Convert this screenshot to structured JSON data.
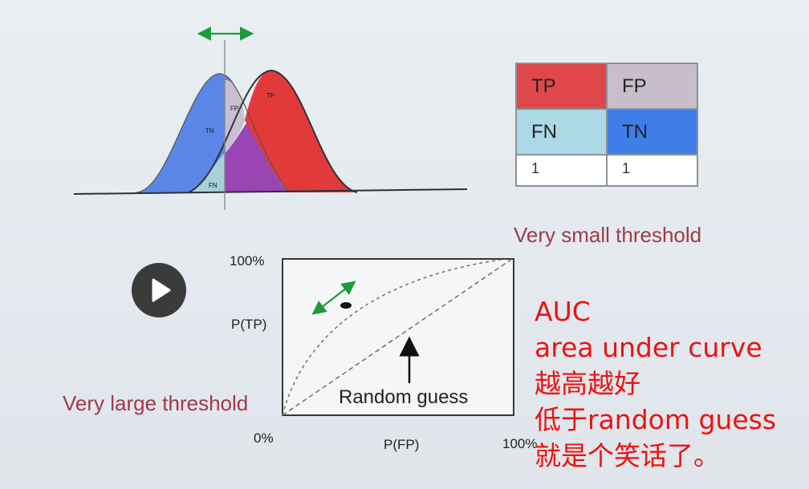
{
  "distribution": {
    "labels": {
      "tn": "TN",
      "fp": "FP",
      "tp": "TP",
      "fn": "FN"
    },
    "colors": {
      "negative": "#5a86e8",
      "positive": "#e23a3a",
      "overlap": "#9a45b4",
      "fp_region": "#c9bfd3",
      "fn_region": "#a8d0d8",
      "threshold_arrow": "#1e9a3c"
    }
  },
  "confusion_matrix": {
    "rows": [
      [
        {
          "text": "TP",
          "color": "#e0474a"
        },
        {
          "text": "FP",
          "color": "#c8bdca"
        }
      ],
      [
        {
          "text": "FN",
          "color": "#abd9e6"
        },
        {
          "text": "TN",
          "color": "#3f7de8"
        }
      ],
      [
        {
          "text": "1",
          "color": "#ffffff"
        },
        {
          "text": "1",
          "color": "#ffffff"
        }
      ]
    ]
  },
  "labels": {
    "small_threshold": "Very small threshold",
    "large_threshold": "Very large threshold"
  },
  "roc": {
    "y_top": "100%",
    "y_label": "P(TP)",
    "origin": "0%",
    "x_label": "P(FP)",
    "x_right": "100%",
    "random_guess": "Random guess"
  },
  "annotation": {
    "lines": [
      "AUC",
      "area under curve",
      "越高越好",
      "低于random guess",
      "就是个笑话了。"
    ],
    "color": "#ee1111"
  },
  "player": {
    "control": "play-icon"
  }
}
